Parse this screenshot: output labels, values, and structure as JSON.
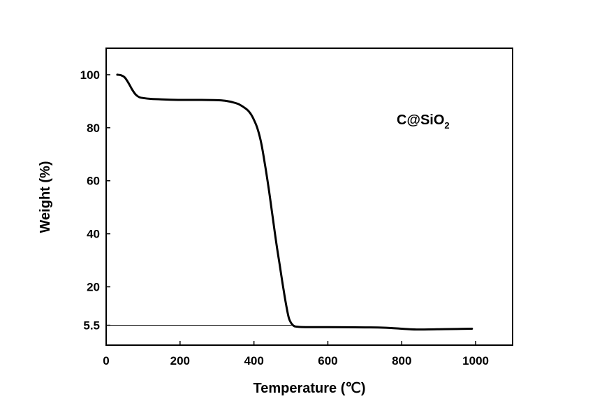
{
  "chart_data": {
    "type": "line",
    "title": "",
    "xlabel": "Temperature (℃)",
    "ylabel": "Weight (%)",
    "xlim": [
      0,
      1100
    ],
    "ylim": [
      -2,
      110
    ],
    "xticks": [
      0,
      200,
      400,
      600,
      800,
      1000
    ],
    "yticks": [
      5.5,
      20,
      40,
      60,
      80,
      100
    ],
    "ytick_labels": [
      "5.5",
      "20",
      "40",
      "60",
      "80",
      "100"
    ],
    "grid": false,
    "annotation": {
      "text": "C@SiO",
      "subscript": "2"
    },
    "reference_line": {
      "y": 5.5,
      "x_end": 510
    },
    "series": [
      {
        "x": [
          30,
          40,
          50,
          60,
          70,
          80,
          90,
          100,
          120,
          150,
          200,
          250,
          300,
          320,
          340,
          360,
          380,
          390,
          400,
          410,
          420,
          430,
          440,
          450,
          460,
          470,
          480,
          490,
          495,
          500,
          505,
          510,
          520,
          540,
          600,
          700,
          750,
          800,
          840,
          900,
          950,
          990
        ],
        "y": [
          100,
          99.8,
          99,
          97,
          94.5,
          92.5,
          91.5,
          91.2,
          90.9,
          90.7,
          90.5,
          90.5,
          90.4,
          90.2,
          89.7,
          88.8,
          87,
          85.5,
          83,
          79.5,
          74,
          66,
          57,
          47,
          37,
          28,
          19,
          11,
          8,
          6.5,
          5.6,
          5.1,
          4.9,
          4.8,
          4.8,
          4.7,
          4.6,
          4.2,
          3.9,
          4,
          4.1,
          4.2
        ]
      }
    ]
  }
}
